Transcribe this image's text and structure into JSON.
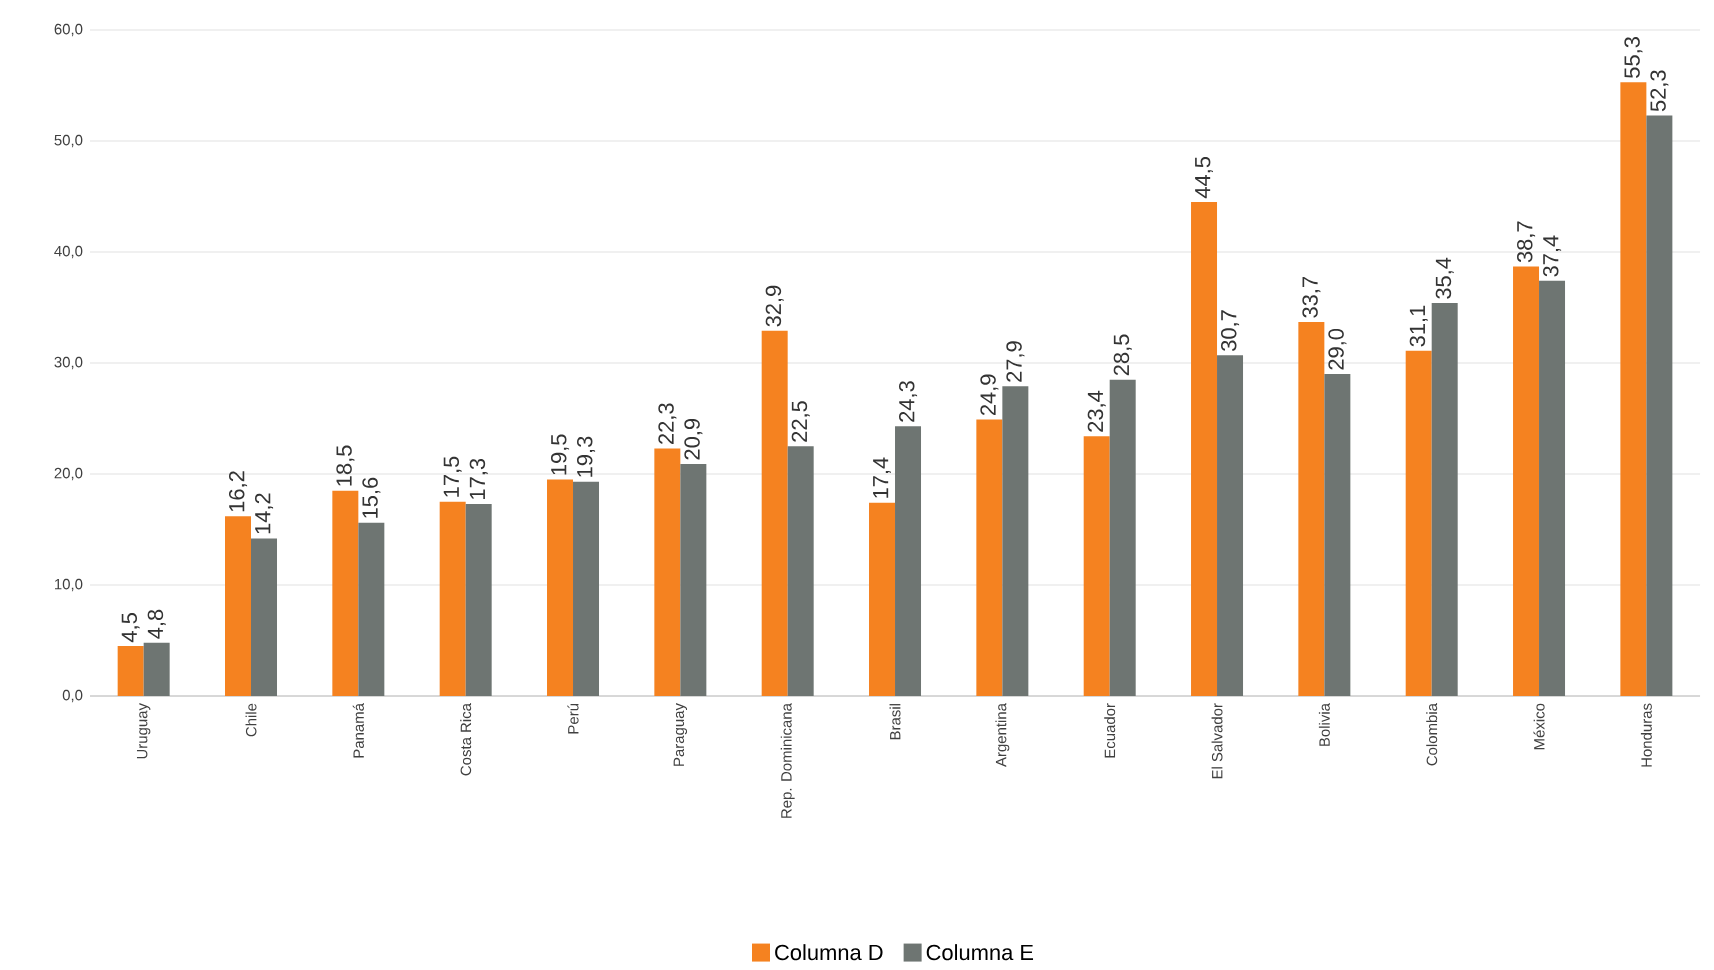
{
  "chart_data": {
    "type": "bar",
    "categories": [
      "Uruguay",
      "Chile",
      "Panamá",
      "Costa Rica",
      "Perú",
      "Paraguay",
      "Rep. Dominicana",
      "Brasil",
      "Argentina",
      "Ecuador",
      "El Salvador",
      "Bolivia",
      "Colombia",
      "México",
      "Honduras"
    ],
    "series": [
      {
        "name": "Columna D",
        "color": "#f58220",
        "values": [
          4.5,
          16.2,
          18.5,
          17.5,
          19.5,
          22.3,
          32.9,
          17.4,
          24.9,
          23.4,
          44.5,
          33.7,
          31.1,
          38.7,
          55.3
        ],
        "value_labels": [
          "4,5",
          "16,2",
          "18,5",
          "17,5",
          "19,5",
          "22,3",
          "32,9",
          "17,4",
          "24,9",
          "23,4",
          "44,5",
          "33,7",
          "31,1",
          "38,7",
          "55,3"
        ]
      },
      {
        "name": "Columna E",
        "color": "#6e7572",
        "values": [
          4.8,
          14.2,
          15.6,
          17.3,
          19.3,
          20.9,
          22.5,
          24.3,
          27.9,
          28.5,
          30.7,
          29.0,
          35.4,
          37.4,
          52.3
        ],
        "value_labels": [
          "4,8",
          "14,2",
          "15,6",
          "17,3",
          "19,3",
          "20,9",
          "22,5",
          "24,3",
          "27,9",
          "28,5",
          "30,7",
          "29,0",
          "35,4",
          "37,4",
          "52,3"
        ]
      }
    ],
    "ylim": [
      0,
      60
    ],
    "yticks": [
      {
        "value": 0,
        "label": "0,0"
      },
      {
        "value": 10,
        "label": "10,0"
      },
      {
        "value": 20,
        "label": "20,0"
      },
      {
        "value": 30,
        "label": "30,0"
      },
      {
        "value": 40,
        "label": "40,0"
      },
      {
        "value": 50,
        "label": "50,0"
      },
      {
        "value": 60,
        "label": "60,0"
      }
    ],
    "grid": "y",
    "legend": "bottom"
  }
}
